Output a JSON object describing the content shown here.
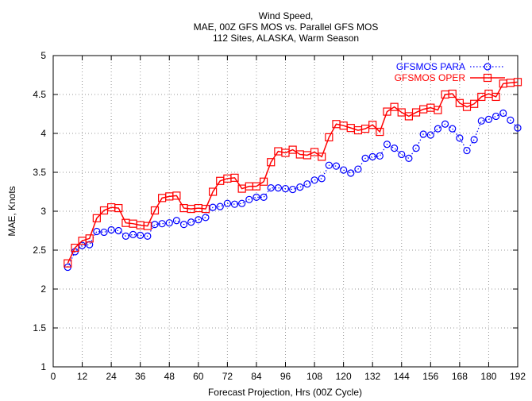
{
  "chart_data": {
    "type": "line",
    "title_lines": [
      "Wind Speed,",
      "MAE, 00Z GFS MOS vs. Parallel GFS MOS",
      "112 Sites, ALASKA, Warm Season"
    ],
    "xlabel": "Forecast Projection, Hrs (00Z Cycle)",
    "ylabel": "MAE, Knots",
    "xlim": [
      0,
      192
    ],
    "ylim": [
      1,
      5
    ],
    "x_ticks": [
      "0",
      "12",
      "24",
      "36",
      "48",
      "60",
      "72",
      "84",
      "96",
      "108",
      "120",
      "132",
      "144",
      "156",
      "168",
      "180",
      "192"
    ],
    "y_ticks": [
      "1",
      "1.5",
      "2",
      "2.5",
      "3",
      "3.5",
      "4",
      "4.5",
      "5"
    ],
    "grid": true,
    "legend_position": "top-right",
    "x": [
      6,
      9,
      12,
      15,
      18,
      21,
      24,
      27,
      30,
      33,
      36,
      39,
      42,
      45,
      48,
      51,
      54,
      57,
      60,
      63,
      66,
      69,
      72,
      75,
      78,
      81,
      84,
      87,
      90,
      93,
      96,
      99,
      102,
      105,
      108,
      111,
      114,
      117,
      120,
      123,
      126,
      129,
      132,
      135,
      138,
      141,
      144,
      147,
      150,
      153,
      156,
      159,
      162,
      165,
      168,
      171,
      174,
      177,
      180,
      183,
      186,
      189,
      192
    ],
    "series": [
      {
        "name": "GFSMOS PARA",
        "color": "#0000ff",
        "marker": "circle",
        "line_style": "dotted",
        "values": [
          2.28,
          2.48,
          2.56,
          2.57,
          2.74,
          2.73,
          2.76,
          2.75,
          2.68,
          2.7,
          2.69,
          2.68,
          2.83,
          2.84,
          2.85,
          2.88,
          2.83,
          2.86,
          2.89,
          2.92,
          3.05,
          3.06,
          3.1,
          3.09,
          3.1,
          3.15,
          3.18,
          3.18,
          3.3,
          3.3,
          3.29,
          3.28,
          3.31,
          3.35,
          3.4,
          3.42,
          3.59,
          3.58,
          3.53,
          3.49,
          3.54,
          3.68,
          3.7,
          3.71,
          3.86,
          3.81,
          3.73,
          3.68,
          3.81,
          3.99,
          3.98,
          4.06,
          4.12,
          4.06,
          3.94,
          3.78,
          3.92,
          4.16,
          4.18,
          4.22,
          4.26,
          4.17,
          4.07
        ]
      },
      {
        "name": "GFSMOS OPER",
        "color": "#ff0000",
        "marker": "square",
        "line_style": "solid",
        "values": [
          2.33,
          2.53,
          2.62,
          2.65,
          2.91,
          3.01,
          3.05,
          3.04,
          2.85,
          2.84,
          2.82,
          2.81,
          3.01,
          3.17,
          3.19,
          3.2,
          3.04,
          3.03,
          3.04,
          3.03,
          3.25,
          3.39,
          3.42,
          3.43,
          3.29,
          3.32,
          3.32,
          3.38,
          3.63,
          3.77,
          3.75,
          3.79,
          3.73,
          3.72,
          3.76,
          3.7,
          3.95,
          4.12,
          4.1,
          4.07,
          4.04,
          4.06,
          4.11,
          4.02,
          4.28,
          4.34,
          4.27,
          4.22,
          4.27,
          4.31,
          4.33,
          4.3,
          4.5,
          4.51,
          4.39,
          4.34,
          4.38,
          4.47,
          4.51,
          4.47,
          4.64,
          4.65,
          4.66
        ]
      }
    ]
  }
}
